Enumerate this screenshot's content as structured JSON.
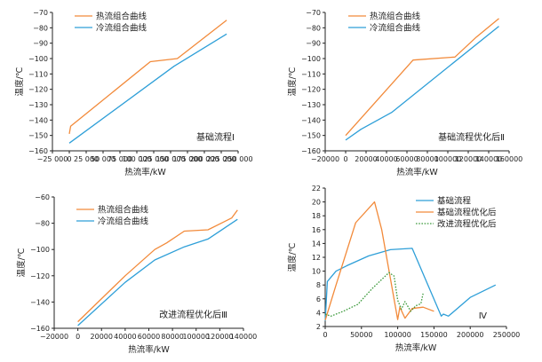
{
  "colors": {
    "hot": "#f28a3a",
    "cold": "#2e9fd8",
    "modified": "#3c9a3c",
    "axis": "#222222"
  },
  "chart_data": [
    {
      "type": "line",
      "annotation": "基础流程Ⅰ",
      "xlabel": "热流率/kW",
      "ylabel": "温度/℃",
      "xlim": [
        -25000,
        250000
      ],
      "ylim": [
        -160,
        -70
      ],
      "xticks": [
        -25000,
        0,
        25000,
        50000,
        75000,
        100000,
        125000,
        150000,
        175000,
        200000,
        225000,
        250000
      ],
      "xticklabels": [
        "−25 000",
        "0",
        "25 000",
        "50 000",
        "75 000",
        "100 000",
        "125 000",
        "150 000",
        "175 000",
        "200 000",
        "225 000",
        "250 000"
      ],
      "yticks": [
        -160,
        -150,
        -140,
        -130,
        -120,
        -110,
        -100,
        -90,
        -80,
        -70
      ],
      "yticklabels": [
        "−160",
        "−150",
        "−140",
        "−130",
        "−120",
        "−110",
        "−100",
        "−90",
        "−80",
        "−70"
      ],
      "legend": "top-left",
      "series": [
        {
          "name": "热流组合曲线",
          "color": "#f28a3a",
          "x": [
            0,
            2000,
            120000,
            160000,
            233000
          ],
          "y": [
            -149,
            -144,
            -102,
            -100,
            -75
          ]
        },
        {
          "name": "冷流组合曲线",
          "color": "#2e9fd8",
          "x": [
            0,
            155000,
            233000
          ],
          "y": [
            -155,
            -105,
            -84
          ]
        }
      ]
    },
    {
      "type": "line",
      "annotation": "基础流程优化后Ⅱ",
      "xlabel": "热流率/kW",
      "ylabel": "温度/℃",
      "xlim": [
        -20000,
        160000
      ],
      "ylim": [
        -160,
        -70
      ],
      "xticks": [
        -20000,
        0,
        20000,
        40000,
        60000,
        80000,
        100000,
        120000,
        140000,
        160000
      ],
      "xticklabels": [
        "−20000",
        "0",
        "20000",
        "40000",
        "60000",
        "80000",
        "100000",
        "120000",
        "140000",
        "160000"
      ],
      "yticks": [
        -160,
        -150,
        -140,
        -130,
        -120,
        -110,
        -100,
        -90,
        -80,
        -70
      ],
      "yticklabels": [
        "−160",
        "−150",
        "−140",
        "−130",
        "−120",
        "−110",
        "−100",
        "−90",
        "−80",
        "−70"
      ],
      "legend": "top-left",
      "series": [
        {
          "name": "热流组合曲线",
          "color": "#f28a3a",
          "x": [
            0,
            66000,
            107000,
            128000,
            150000
          ],
          "y": [
            -150,
            -101,
            -99,
            -86,
            -74
          ]
        },
        {
          "name": "冷流组合曲线",
          "color": "#2e9fd8",
          "x": [
            0,
            15000,
            45000,
            150000
          ],
          "y": [
            -153,
            -146,
            -135,
            -79
          ]
        }
      ]
    },
    {
      "type": "line",
      "annotation": "改进流程优化后Ⅲ",
      "xlabel": "热流率/kW",
      "ylabel": "温度/℃",
      "xlim": [
        -20000,
        140000
      ],
      "ylim": [
        -160,
        -60
      ],
      "xticks": [
        -20000,
        0,
        20000,
        40000,
        60000,
        80000,
        100000,
        120000,
        140000
      ],
      "xticklabels": [
        "−20000",
        "0",
        "20000",
        "40000",
        "60000",
        "80000",
        "100000",
        "120000",
        "140000"
      ],
      "yticks": [
        -160,
        -140,
        -120,
        -100,
        -80,
        -60
      ],
      "yticklabels": [
        "−160",
        "−140",
        "−120",
        "−100",
        "−80",
        "−60"
      ],
      "legend": "top-left",
      "series": [
        {
          "name": "热流组合曲线",
          "color": "#f28a3a",
          "x": [
            0,
            40000,
            65000,
            75000,
            90000,
            110000,
            130000,
            135000
          ],
          "y": [
            -155,
            -120,
            -100,
            -95,
            -86,
            -85,
            -76,
            -70
          ]
        },
        {
          "name": "冷流组合曲线",
          "color": "#2e9fd8",
          "x": [
            0,
            40000,
            65000,
            90000,
            110000,
            135000
          ],
          "y": [
            -158,
            -125,
            -108,
            -98,
            -92,
            -77
          ]
        }
      ]
    },
    {
      "type": "line",
      "annotation": "Ⅳ",
      "xlabel": "热流率/kW",
      "ylabel": "温度/℃",
      "xlim": [
        0,
        250000
      ],
      "ylim": [
        2,
        22
      ],
      "xticks": [
        0,
        50000,
        100000,
        150000,
        200000,
        250000
      ],
      "xticklabels": [
        "0",
        "50000",
        "100000",
        "150000",
        "200000",
        "250000"
      ],
      "yticks": [
        2,
        4,
        6,
        8,
        10,
        12,
        14,
        16,
        18,
        20,
        22
      ],
      "yticklabels": [
        "2",
        "4",
        "6",
        "8",
        "10",
        "12",
        "14",
        "16",
        "18",
        "20",
        "22"
      ],
      "legend": "top-right",
      "series": [
        {
          "name": "基础流程",
          "color": "#2e9fd8",
          "dash": false,
          "x": [
            0,
            3000,
            15000,
            30000,
            60000,
            90000,
            120000,
            160000,
            163000,
            170000,
            200000,
            235000
          ],
          "y": [
            2.8,
            8.5,
            10,
            10.8,
            12.2,
            13.1,
            13.3,
            3.5,
            3.8,
            3.5,
            6.2,
            8
          ]
        },
        {
          "name": "基础流程优化后",
          "color": "#f28a3a",
          "dash": false,
          "x": [
            0,
            15000,
            42000,
            68000,
            78000,
            100000,
            103000,
            110000,
            120000,
            135000,
            150000
          ],
          "y": [
            2.9,
            8,
            17,
            20,
            16,
            3,
            4.8,
            3.2,
            4.6,
            4.8,
            4.2
          ]
        },
        {
          "name": "改进流程优化后",
          "color": "#3c9a3c",
          "dash": true,
          "x": [
            0,
            8000,
            25000,
            45000,
            65000,
            75000,
            88000,
            95000,
            100000,
            105000,
            110000,
            118000,
            125000,
            132000,
            135000
          ],
          "y": [
            3.8,
            3.5,
            4.2,
            5.2,
            7.5,
            8.5,
            9.8,
            9.3,
            5.8,
            4.5,
            5.6,
            4.2,
            5,
            5.3,
            6.8
          ]
        }
      ]
    }
  ]
}
